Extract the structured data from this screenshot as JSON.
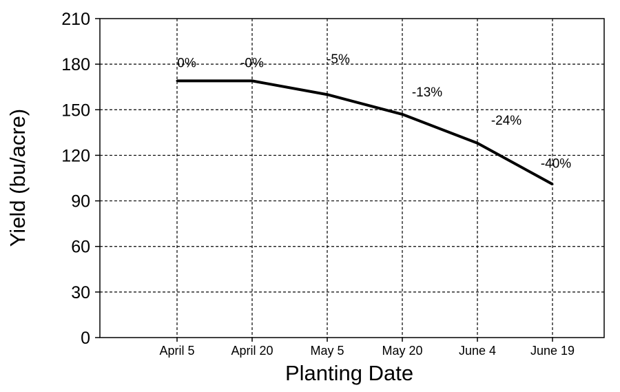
{
  "chart_data": {
    "type": "line",
    "title": "",
    "xlabel": "Planting Date",
    "ylabel": "Yield (bu/acre)",
    "categories": [
      "April 5",
      "April 20",
      "May 5",
      "May 20",
      "June 4",
      "June 19"
    ],
    "ylim": [
      0,
      210
    ],
    "yticks": [
      0,
      30,
      60,
      90,
      120,
      150,
      180,
      210
    ],
    "grid": true,
    "series": [
      {
        "values": [
          169,
          169,
          160,
          147,
          128,
          101
        ],
        "labels": [
          "0%",
          "-0%",
          "-5%",
          "-13%",
          "-24%",
          "-40%"
        ],
        "color": "#000000"
      }
    ]
  }
}
